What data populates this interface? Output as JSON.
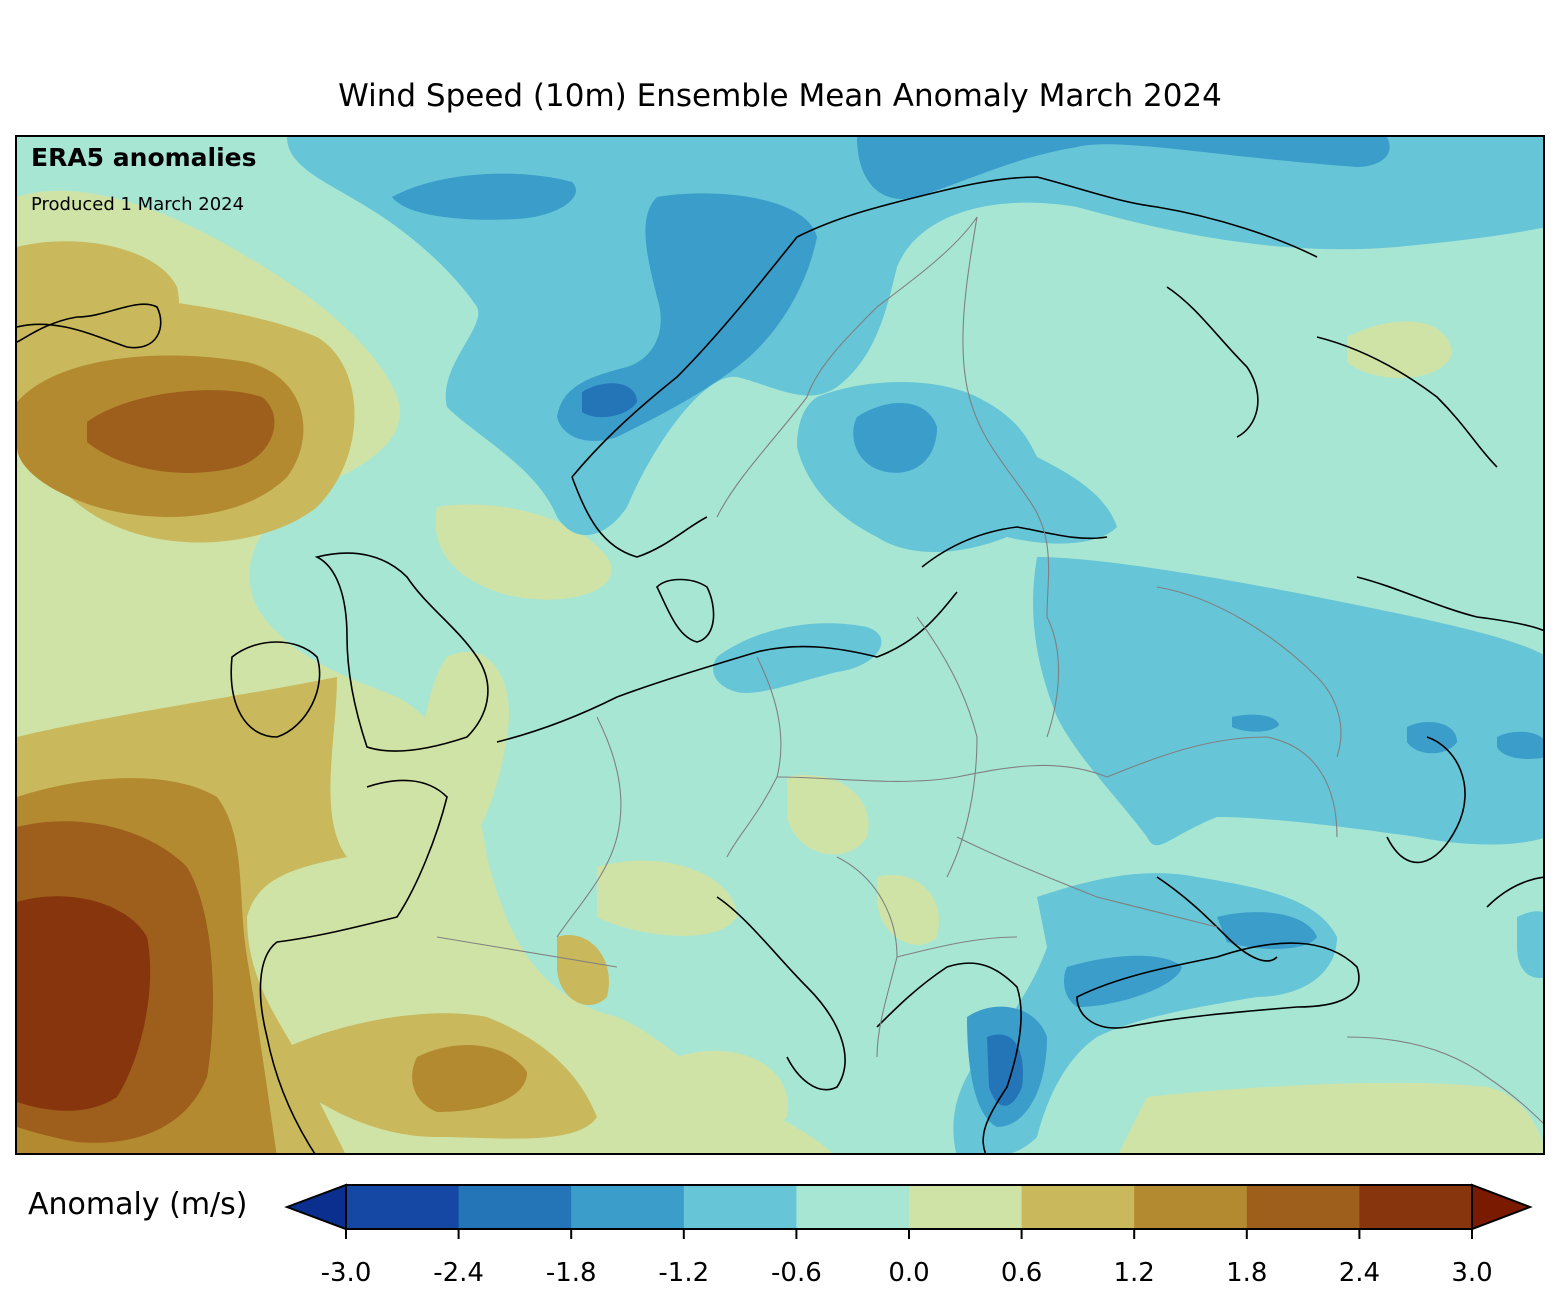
{
  "title": "Wind Speed (10m) Ensemble Mean Anomaly March 2024",
  "badge": {
    "title": "ERA5 anomalies",
    "subtitle": "Produced 1 March 2024"
  },
  "colorbar": {
    "label": "Anomaly (m/s)",
    "ticks": [
      "-3.0",
      "-2.4",
      "-1.8",
      "-1.2",
      "-0.6",
      "0.0",
      "0.6",
      "1.2",
      "1.8",
      "2.4",
      "3.0"
    ],
    "bins": [
      {
        "from": -3.0,
        "to": -2.4,
        "color": "#1448a4"
      },
      {
        "from": -2.4,
        "to": -1.8,
        "color": "#2474b8"
      },
      {
        "from": -1.8,
        "to": -1.2,
        "color": "#3a9dca"
      },
      {
        "from": -1.2,
        "to": -0.6,
        "color": "#66c5d6"
      },
      {
        "from": -0.6,
        "to": 0.0,
        "color": "#a8e6d4"
      },
      {
        "from": 0.0,
        "to": 0.6,
        "color": "#cfe3a6"
      },
      {
        "from": 0.6,
        "to": 1.2,
        "color": "#c9b85c"
      },
      {
        "from": 1.2,
        "to": 1.8,
        "color": "#b38a30"
      },
      {
        "from": 1.8,
        "to": 2.4,
        "color": "#9e5e1c"
      },
      {
        "from": 2.4,
        "to": 3.0,
        "color": "#86350c"
      }
    ],
    "under_color": "#0a2f8f",
    "over_color": "#7a1a00"
  }
}
